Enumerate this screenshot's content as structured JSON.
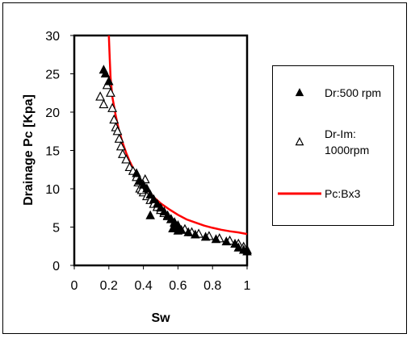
{
  "chart_data": {
    "type": "scatter",
    "title": "",
    "xlabel": "Sw",
    "ylabel": "Drainage Pc [Kpa]",
    "xlim": [
      0,
      1
    ],
    "ylim": [
      0,
      30
    ],
    "xticks": [
      "0",
      "0.2",
      "0.4",
      "0.6",
      "0.8",
      "1"
    ],
    "yticks": [
      "0",
      "5",
      "10",
      "15",
      "20",
      "25",
      "30"
    ],
    "grid": false,
    "legend_position": "right",
    "series": [
      {
        "name": "Dr:500 rpm",
        "kind": "filled-triangle",
        "color": "#000000",
        "points": [
          [
            0.17,
            25.5
          ],
          [
            0.18,
            25.0
          ],
          [
            0.2,
            24.0
          ],
          [
            0.36,
            12.0
          ],
          [
            0.38,
            11.0
          ],
          [
            0.4,
            10.5
          ],
          [
            0.42,
            10.0
          ],
          [
            0.44,
            9.2
          ],
          [
            0.46,
            8.6
          ],
          [
            0.48,
            8.0
          ],
          [
            0.5,
            7.5
          ],
          [
            0.52,
            7.0
          ],
          [
            0.54,
            6.5
          ],
          [
            0.56,
            6.0
          ],
          [
            0.58,
            5.5
          ],
          [
            0.6,
            5.0
          ],
          [
            0.62,
            4.6
          ],
          [
            0.66,
            4.3
          ],
          [
            0.7,
            4.0
          ],
          [
            0.76,
            3.7
          ],
          [
            0.82,
            3.4
          ],
          [
            0.88,
            3.1
          ],
          [
            0.93,
            2.8
          ],
          [
            0.95,
            2.3
          ],
          [
            0.98,
            2.0
          ],
          [
            1.0,
            1.8
          ],
          [
            0.44,
            6.5
          ],
          [
            0.57,
            4.8
          ],
          [
            0.6,
            4.5
          ]
        ]
      },
      {
        "name": "Dr-Im: 1000rpm",
        "kind": "hollow-triangle",
        "color": "#000000",
        "points": [
          [
            0.15,
            22.0
          ],
          [
            0.17,
            21.0
          ],
          [
            0.19,
            23.5
          ],
          [
            0.21,
            22.5
          ],
          [
            0.22,
            20.5
          ],
          [
            0.23,
            19.0
          ],
          [
            0.24,
            18.0
          ],
          [
            0.25,
            17.5
          ],
          [
            0.26,
            16.5
          ],
          [
            0.27,
            15.5
          ],
          [
            0.28,
            14.5
          ],
          [
            0.3,
            13.8
          ],
          [
            0.32,
            12.8
          ],
          [
            0.34,
            12.3
          ],
          [
            0.36,
            11.5
          ],
          [
            0.37,
            10.8
          ],
          [
            0.38,
            10.0
          ],
          [
            0.4,
            9.5
          ],
          [
            0.42,
            9.0
          ],
          [
            0.44,
            8.5
          ],
          [
            0.46,
            8.0
          ],
          [
            0.48,
            7.6
          ],
          [
            0.5,
            7.2
          ],
          [
            0.52,
            6.8
          ],
          [
            0.54,
            6.4
          ],
          [
            0.56,
            6.0
          ],
          [
            0.58,
            5.6
          ],
          [
            0.6,
            5.2
          ],
          [
            0.64,
            4.7
          ],
          [
            0.68,
            4.3
          ],
          [
            0.72,
            4.1
          ],
          [
            0.78,
            3.8
          ],
          [
            0.84,
            3.5
          ],
          [
            0.9,
            3.2
          ],
          [
            0.95,
            2.8
          ],
          [
            0.98,
            2.4
          ],
          [
            1.0,
            2.0
          ],
          [
            0.39,
            9.8
          ],
          [
            0.41,
            11.2
          ]
        ]
      },
      {
        "name": "Pc:Bx3",
        "kind": "line",
        "color": "#ff0000",
        "points": [
          [
            0.2,
            30.0
          ],
          [
            0.205,
            27.0
          ],
          [
            0.21,
            24.5
          ],
          [
            0.22,
            22.0
          ],
          [
            0.24,
            19.5
          ],
          [
            0.26,
            17.5
          ],
          [
            0.28,
            16.0
          ],
          [
            0.3,
            14.7
          ],
          [
            0.32,
            13.6
          ],
          [
            0.34,
            12.7
          ],
          [
            0.36,
            11.9
          ],
          [
            0.38,
            11.2
          ],
          [
            0.4,
            10.5
          ],
          [
            0.43,
            9.7
          ],
          [
            0.46,
            8.9
          ],
          [
            0.5,
            8.1
          ],
          [
            0.55,
            7.3
          ],
          [
            0.6,
            6.6
          ],
          [
            0.65,
            6.0
          ],
          [
            0.7,
            5.6
          ],
          [
            0.75,
            5.2
          ],
          [
            0.8,
            4.9
          ],
          [
            0.85,
            4.65
          ],
          [
            0.9,
            4.45
          ],
          [
            0.95,
            4.3
          ],
          [
            1.0,
            4.1
          ]
        ]
      }
    ],
    "legend": [
      {
        "label_lines": [
          "Dr:500 rpm"
        ]
      },
      {
        "label_lines": [
          "Dr-Im:",
          "1000rpm"
        ]
      },
      {
        "label_lines": [
          "Pc:Bx3"
        ]
      }
    ]
  }
}
